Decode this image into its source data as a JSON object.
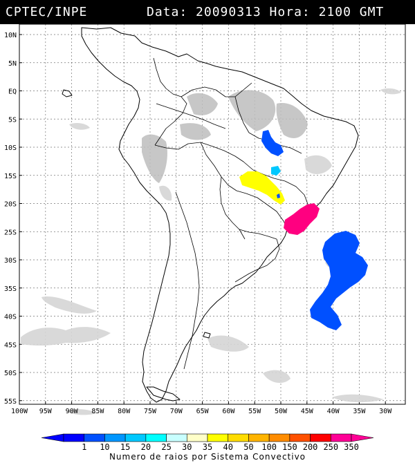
{
  "header": {
    "source": "CPTEC/INPE",
    "datetime": "Data: 20090313 Hora: 2100 GMT"
  },
  "map": {
    "lat_ticks": [
      "10N",
      "5N",
      "EQ",
      "5S",
      "10S",
      "15S",
      "20S",
      "25S",
      "30S",
      "35S",
      "40S",
      "45S",
      "50S",
      "55S"
    ],
    "lon_ticks": [
      "100W",
      "95W",
      "90W",
      "85W",
      "80W",
      "75W",
      "70W",
      "65W",
      "60W",
      "55W",
      "50W",
      "45W",
      "40W",
      "35W",
      "30W"
    ]
  },
  "legend": {
    "title": "Numero de raios por Sistema Convectivo",
    "labels": [
      "1",
      "10",
      "15",
      "20",
      "25",
      "30",
      "35",
      "40",
      "50",
      "100",
      "150",
      "200",
      "250",
      "350"
    ],
    "colors": [
      "#0000ff",
      "#0050ff",
      "#0096ff",
      "#00c8ff",
      "#00ffff",
      "#c8ffff",
      "#ffffc8",
      "#ffff00",
      "#ffdc00",
      "#ffb400",
      "#ff8c00",
      "#ff5000",
      "#ff0000",
      "#ff0096"
    ]
  },
  "systems": [
    {
      "id": "s1",
      "color": "#0050ff"
    },
    {
      "id": "s2",
      "color": "#00c8ff"
    },
    {
      "id": "s3",
      "color": "#ffff00"
    },
    {
      "id": "s4",
      "color": "#ff0080"
    },
    {
      "id": "s5",
      "color": "#0050ff"
    }
  ]
}
